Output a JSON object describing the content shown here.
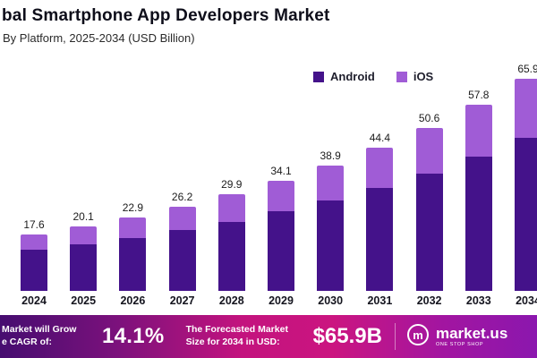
{
  "header": {
    "title": "bal Smartphone App Developers Market",
    "subtitle": "By Platform, 2025-2034 (USD Billion)"
  },
  "chart_data": {
    "type": "bar",
    "stacked": true,
    "title": "bal Smartphone App Developers Market",
    "subtitle": "By Platform, 2025-2034 (USD Billion)",
    "ylabel": "USD Billion",
    "ylim": [
      0,
      70
    ],
    "grid": false,
    "legend_position": "top-right",
    "categories": [
      "2024",
      "2025",
      "2026",
      "2027",
      "2028",
      "2029",
      "2030",
      "2031",
      "2032",
      "2033",
      "2034"
    ],
    "totals": [
      17.6,
      20.1,
      22.9,
      26.2,
      29.9,
      34.1,
      38.9,
      44.4,
      50.6,
      57.8,
      65.9
    ],
    "series": [
      {
        "name": "Android",
        "color": "#44128A",
        "values": [
          12.7,
          14.5,
          16.5,
          18.9,
          21.5,
          24.6,
          28.0,
          32.0,
          36.4,
          41.6,
          47.4
        ]
      },
      {
        "name": "iOS",
        "color": "#A05CD6",
        "values": [
          4.9,
          5.6,
          6.4,
          7.3,
          8.4,
          9.5,
          10.9,
          12.4,
          14.2,
          16.2,
          18.5
        ]
      }
    ]
  },
  "banner": {
    "cagr_label_line1": "Market will Grow",
    "cagr_label_line2": "e CAGR of:",
    "cagr_value": "14.1%",
    "forecast_label_line1": "The Forecasted Market",
    "forecast_label_line2": "Size for 2034 in USD:",
    "forecast_value": "$65.9B",
    "logo_text": "market.us",
    "logo_tagline": "ONE STOP SHOP"
  }
}
